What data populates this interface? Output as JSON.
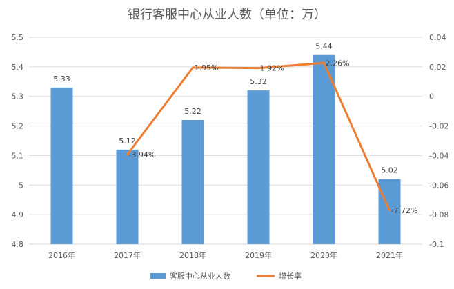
{
  "chart_data": {
    "type": "bar+line",
    "title": "银行客服中心从业人数（单位：万）",
    "categories": [
      "2016年",
      "2017年",
      "2018年",
      "2019年",
      "2020年",
      "2021年"
    ],
    "series": [
      {
        "name": "客服中心从业人数",
        "type": "bar",
        "axis": "left",
        "values": [
          5.33,
          5.12,
          5.22,
          5.32,
          5.44,
          5.02
        ],
        "labels": [
          "5.33",
          "5.12",
          "5.22",
          "5.32",
          "5.44",
          "5.02"
        ],
        "color": "#5B9BD5"
      },
      {
        "name": "增长率",
        "type": "line",
        "axis": "right",
        "values": [
          null,
          -0.0394,
          0.0195,
          0.0192,
          0.0226,
          -0.0772
        ],
        "labels": [
          "",
          "-3.94%",
          "1.95%",
          "1.92%",
          "2.26%",
          "-7.72%"
        ],
        "color": "#ED7D31"
      }
    ],
    "y_left": {
      "range": [
        4.8,
        5.5
      ],
      "ticks": [
        "5.5",
        "5.4",
        "5.3",
        "5.2",
        "5.1",
        "5",
        "4.9",
        "4.8"
      ]
    },
    "y_right": {
      "range": [
        -0.1,
        0.04
      ],
      "ticks": [
        "0.04",
        "0.02",
        "0",
        "-0.02",
        "-0.04",
        "-0.06",
        "-0.08",
        "-0.1"
      ]
    },
    "grid": true,
    "legend": "bottom"
  }
}
